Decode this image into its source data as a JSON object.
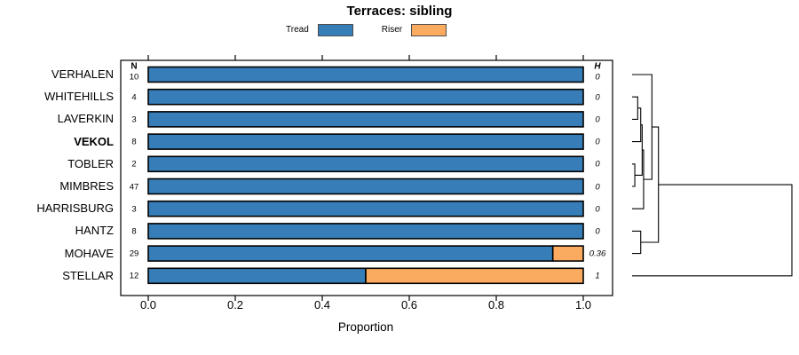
{
  "title": "Terraces: sibling",
  "legend": [
    {
      "label": "Tread",
      "color": "#377EB8"
    },
    {
      "label": "Riser",
      "color": "#FBAB60"
    }
  ],
  "columns": {
    "n_header": "N",
    "h_header": "H"
  },
  "x_axis": {
    "label": "Proportion",
    "tick_labels": [
      "0.0",
      "0.2",
      "0.4",
      "0.6",
      "0.8",
      "1.0"
    ],
    "tick_values": [
      0,
      0.2,
      0.4,
      0.6,
      0.8,
      1.0
    ]
  },
  "chart_data": {
    "type": "bar",
    "orientation": "horizontal",
    "stacked": true,
    "title": "Terraces: sibling",
    "xlabel": "Proportion",
    "xlim": [
      0,
      1
    ],
    "grid": false,
    "legend_position": "top",
    "categories": [
      "VERHALEN",
      "WHITEHILLS",
      "LAVERKIN",
      "VEKOL",
      "TOBLER",
      "MIMBRES",
      "HARRISBURG",
      "HANTZ",
      "MOHAVE",
      "STELLAR"
    ],
    "bold_category": "VEKOL",
    "series": [
      {
        "name": "Tread",
        "color": "#377EB8",
        "values": [
          1,
          1,
          1,
          1,
          1,
          1,
          1,
          1,
          0.93,
          0.5
        ]
      },
      {
        "name": "Riser",
        "color": "#FBAB60",
        "values": [
          0,
          0,
          0,
          0,
          0,
          0,
          0,
          0,
          0.07,
          0.5
        ]
      }
    ],
    "n_values": [
      "10",
      "4",
      "3",
      "8",
      "2",
      "47",
      "3",
      "8",
      "29",
      "12"
    ],
    "h_values": [
      "0",
      "0",
      "0",
      "0",
      "0",
      "0",
      "0",
      "0",
      "0.36",
      "1"
    ]
  },
  "dendrogram": {
    "merges": [
      {
        "id": "C1",
        "a": "WHITEHILLS",
        "b": "LAVERKIN",
        "h": 0.035
      },
      {
        "id": "C2",
        "a": "C1",
        "b": "VEKOL",
        "h": 0.054
      },
      {
        "id": "C3",
        "a": "TOBLER",
        "b": "MIMBRES",
        "h": 0.017
      },
      {
        "id": "C4",
        "a": "C2",
        "b": "C3",
        "h": 0.063
      },
      {
        "id": "C5",
        "a": "C4",
        "b": "HARRISBURG",
        "h": 0.072
      },
      {
        "id": "C6",
        "a": "VERHALEN",
        "b": "C5",
        "h": 0.124
      },
      {
        "id": "C7",
        "a": "HANTZ",
        "b": "MOHAVE",
        "h": 0.054
      },
      {
        "id": "C8",
        "a": "C6",
        "b": "C7",
        "h": 0.165
      },
      {
        "id": "ROOT",
        "a": "C8",
        "b": "STELLAR",
        "h": 1.0
      }
    ]
  }
}
